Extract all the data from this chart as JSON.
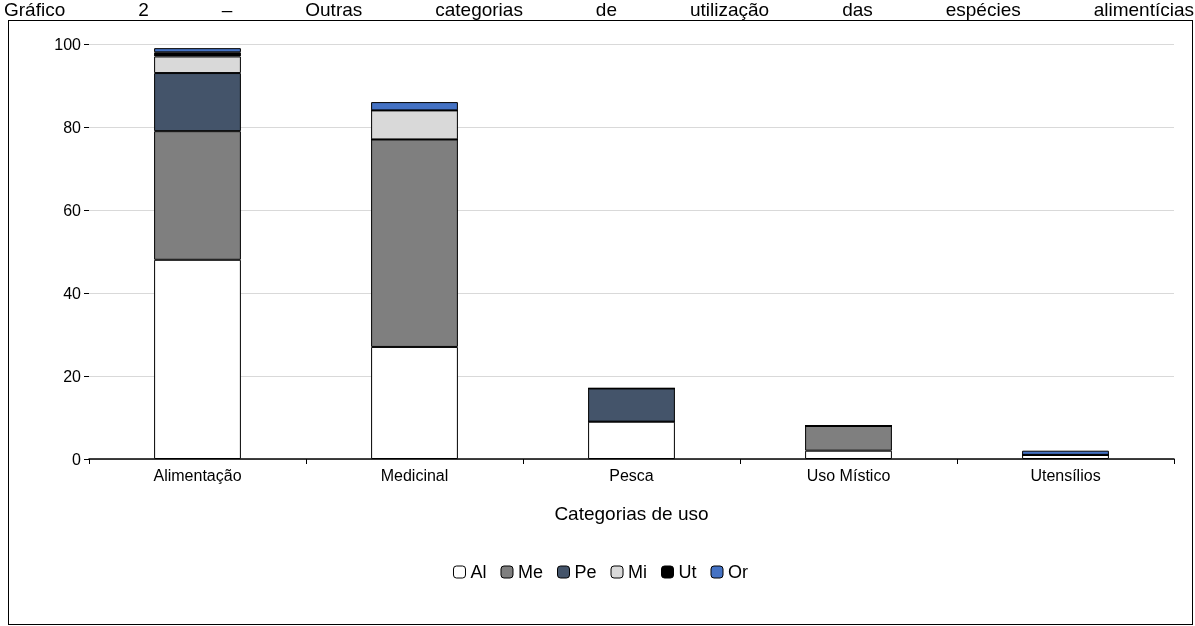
{
  "chart_data": {
    "type": "bar",
    "title": "Gráfico 2 – Outras categorias de utilização das espécies alimentícias",
    "xlabel": "Categorias de uso",
    "categories": [
      "Alimentação",
      "Medicinal",
      "Pesca",
      "Uso Místico",
      "Utensílios"
    ],
    "stacked": true,
    "series": [
      {
        "name": "Al",
        "color": "#ffffff",
        "values": [
          48,
          27,
          9,
          2,
          1
        ]
      },
      {
        "name": "Me",
        "color": "#7f7f7f",
        "values": [
          31,
          50,
          0,
          6,
          0
        ]
      },
      {
        "name": "Pe",
        "color": "#44546a",
        "values": [
          14,
          0,
          8,
          0,
          0
        ]
      },
      {
        "name": "Mi",
        "color": "#d9d9d9",
        "values": [
          4,
          7,
          0,
          0,
          0
        ]
      },
      {
        "name": "Ut",
        "color": "#000000",
        "values": [
          1,
          0,
          0,
          0,
          0
        ]
      },
      {
        "name": "Or",
        "color": "#4472c4",
        "values": [
          1,
          2,
          0,
          0,
          1
        ]
      }
    ],
    "ylim": [
      0,
      100
    ],
    "yticks": [
      0,
      20,
      40,
      60,
      80,
      100
    ],
    "grid": "y",
    "legend": "bottom"
  }
}
